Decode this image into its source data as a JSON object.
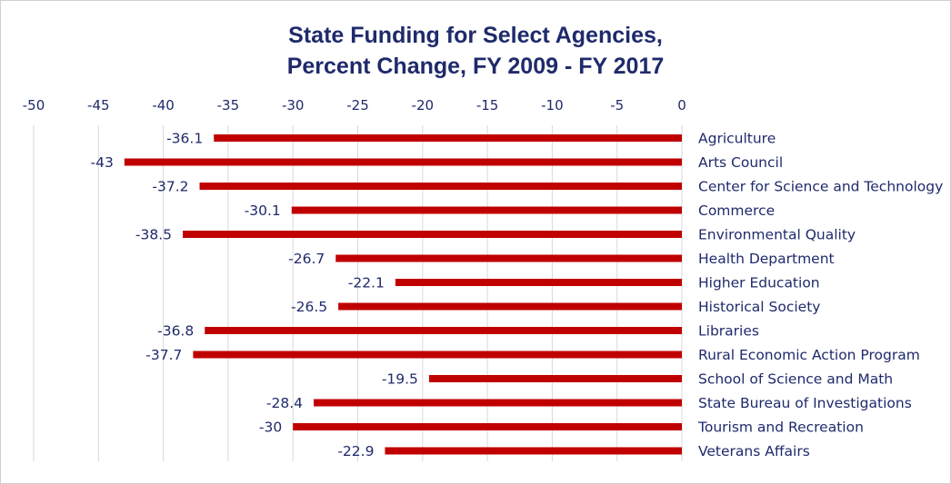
{
  "chart_data": {
    "type": "bar",
    "orientation": "horizontal",
    "title_line1": "State Funding for Select Agencies,",
    "title_line2": "Percent Change, FY 2009 - FY 2017",
    "xlim": [
      -50,
      0
    ],
    "x_ticks": [
      -50,
      -45,
      -40,
      -35,
      -30,
      -25,
      -20,
      -15,
      -10,
      -5,
      0
    ],
    "axis_position": "top",
    "grid": true,
    "bar_color": "#c00000",
    "text_color": "#1f2a6b",
    "categories": [
      "Agriculture",
      "Arts Council",
      "Center for Science and Technology",
      "Commerce",
      "Environmental Quality",
      "Health Department",
      "Higher Education",
      "Historical Society",
      "Libraries",
      "Rural Economic Action Program",
      "School of Science and Math",
      "State Bureau of Investigations",
      "Tourism and Recreation",
      "Veterans Affairs"
    ],
    "values": [
      -36.1,
      -43,
      -37.2,
      -30.1,
      -38.5,
      -26.7,
      -22.1,
      -26.5,
      -36.8,
      -37.7,
      -19.5,
      -28.4,
      -30,
      -22.9
    ],
    "data_labels": [
      "-36.1",
      "-43",
      "-37.2",
      "-30.1",
      "-38.5",
      "-26.7",
      "-22.1",
      "-26.5",
      "-36.8",
      "-37.7",
      "-19.5",
      "-28.4",
      "-30",
      "-22.9"
    ]
  }
}
